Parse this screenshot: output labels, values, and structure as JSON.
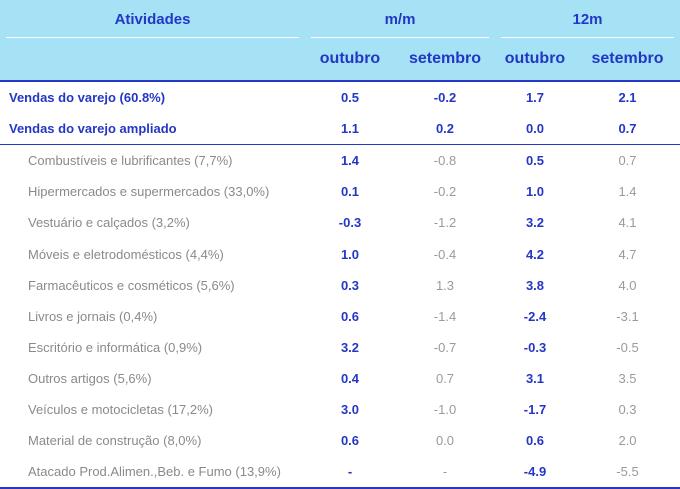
{
  "header": {
    "atividades": "Atividades",
    "group_mm": "m/m",
    "group_12m": "12m",
    "col_outubro_1": "outubro",
    "col_setembro_1": "setembro",
    "col_outubro_2": "outubro",
    "col_setembro_2": "setembro"
  },
  "rows": [
    {
      "label": "Vendas do varejo (60.8%)",
      "mm_out": "0.5",
      "mm_set": "-0.2",
      "a_out": "1.7",
      "a_set": "2.1"
    },
    {
      "label": "Vendas do varejo ampliado",
      "mm_out": "1.1",
      "mm_set": "0.2",
      "a_out": "0.0",
      "a_set": "0.7"
    },
    {
      "label": "Combustíveis e lubrificantes (7,7%)",
      "mm_out": "1.4",
      "mm_set": "-0.8",
      "a_out": "0.5",
      "a_set": "0.7"
    },
    {
      "label": "Hipermercados e supermercados (33,0%)",
      "mm_out": "0.1",
      "mm_set": "-0.2",
      "a_out": "1.0",
      "a_set": "1.4"
    },
    {
      "label": "Vestuário e calçados (3,2%)",
      "mm_out": "-0.3",
      "mm_set": "-1.2",
      "a_out": "3.2",
      "a_set": "4.1"
    },
    {
      "label": "Móveis e eletrodomésticos (4,4%)",
      "mm_out": "1.0",
      "mm_set": "-0.4",
      "a_out": "4.2",
      "a_set": "4.7"
    },
    {
      "label": "Farmacêuticos e cosméticos (5,6%)",
      "mm_out": "0.3",
      "mm_set": "1.3",
      "a_out": "3.8",
      "a_set": "4.0"
    },
    {
      "label": "Livros e jornais (0,4%)",
      "mm_out": "0.6",
      "mm_set": "-1.4",
      "a_out": "-2.4",
      "a_set": "-3.1"
    },
    {
      "label": "Escritório e informática (0,9%)",
      "mm_out": "3.2",
      "mm_set": "-0.7",
      "a_out": "-0.3",
      "a_set": "-0.5"
    },
    {
      "label": "Outros artigos (5,6%)",
      "mm_out": "0.4",
      "mm_set": "0.7",
      "a_out": "3.1",
      "a_set": "3.5"
    },
    {
      "label": "Veículos e motocicletas (17,2%)",
      "mm_out": "3.0",
      "mm_set": "-1.0",
      "a_out": "-1.7",
      "a_set": "0.3"
    },
    {
      "label": "Material de construção (8,0%)",
      "mm_out": "0.6",
      "mm_set": "0.0",
      "a_out": "0.6",
      "a_set": "2.0"
    },
    {
      "label": "Atacado Prod.Alimen.,Beb. e Fumo (13,9%)",
      "mm_out": "-",
      "mm_set": "-",
      "a_out": "-4.9",
      "a_set": "-5.5"
    }
  ]
}
